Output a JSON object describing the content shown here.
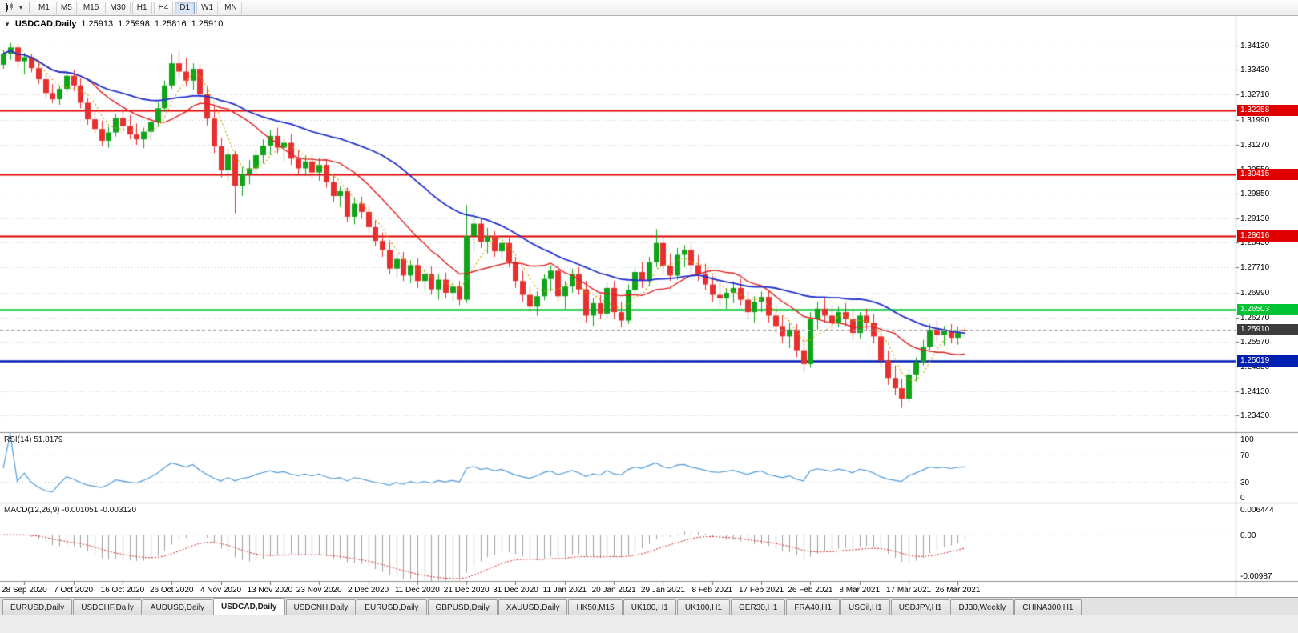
{
  "toolbar": {
    "timeframes": [
      "M1",
      "M5",
      "M15",
      "M30",
      "H1",
      "H4",
      "D1",
      "W1",
      "MN"
    ],
    "active_timeframe": "D1"
  },
  "icons": {
    "title_caret": "▼",
    "dropdown_caret": "▾"
  },
  "chart": {
    "title": {
      "symbol_period": "USDCAD,Daily",
      "open": "1.25913",
      "high": "1.25998",
      "low": "1.25816",
      "close": "1.25910"
    },
    "price_axis_labels": [
      "1.34130",
      "1.33430",
      "1.32710",
      "1.31990",
      "1.31270",
      "1.30550",
      "1.29850",
      "1.29130",
      "1.28430",
      "1.27710",
      "1.26990",
      "1.26270",
      "1.25570",
      "1.24850",
      "1.24130",
      "1.23430"
    ],
    "levels": [
      {
        "value": 1.32258,
        "label": "1.32258",
        "color": "#e00000",
        "width": 1.8
      },
      {
        "value": 1.30415,
        "label": "1.30415",
        "color": "#e00000",
        "width": 1.8
      },
      {
        "value": 1.28616,
        "label": "1.28616",
        "color": "#e00000",
        "width": 1.8
      },
      {
        "value": 1.26503,
        "label": "1.26503",
        "color": "#00c432",
        "width": 2.6
      },
      {
        "value": 1.25019,
        "label": "1.25019",
        "color": "#0020b2",
        "width": 2.4
      }
    ],
    "current_price": {
      "value": 1.2591,
      "label": "1.25910",
      "tag_color": "#3c3c3c",
      "line_color": "#9a9a9a"
    }
  },
  "rsi": {
    "label": "RSI(14)",
    "value": "51.8179",
    "axis_labels": [
      {
        "v": 100,
        "t": "100"
      },
      {
        "v": 70,
        "t": "70"
      },
      {
        "v": 30,
        "t": "30"
      },
      {
        "v": 0,
        "t": "0"
      }
    ],
    "levels": [
      70,
      30
    ],
    "line_color": "#4f9ada"
  },
  "macd": {
    "label": "MACD(12,26,9)",
    "values_text": "-0.001051 -0.003120",
    "axis_labels": [
      {
        "v": 0.006444,
        "t": "0.006444"
      },
      {
        "v": 0,
        "t": "0.00"
      },
      {
        "v": -0.00987,
        "t": "-0.00987"
      }
    ],
    "histogram_color": "#a0a0a0",
    "signal_color": "#d42020"
  },
  "date_axis": {
    "labels": [
      "28 Sep 2020",
      "7 Oct 2020",
      "16 Oct 2020",
      "26 Oct 2020",
      "4 Nov 2020",
      "13 Nov 2020",
      "23 Nov 2020",
      "2 Dec 2020",
      "11 Dec 2020",
      "21 Dec 2020",
      "31 Dec 2020",
      "11 Jan 2021",
      "20 Jan 2021",
      "29 Jan 2021",
      "8 Feb 2021",
      "17 Feb 2021",
      "26 Feb 2021",
      "8 Mar 2021",
      "17 Mar 2021",
      "26 Mar 2021"
    ],
    "first_label_index": 3,
    "label_step": 7
  },
  "tabs": {
    "items": [
      "EURUSD,Daily",
      "USDCHF,Daily",
      "AUDUSD,Daily",
      "USDCAD,Daily",
      "USDCNH,Daily",
      "EURUSD,Daily",
      "GBPUSD,Daily",
      "XAUUSD,Daily",
      "HK50,M15",
      "UK100,H1",
      "UK100,H1",
      "GER30,H1",
      "FRA40,H1",
      "USOil,H1",
      "USDJPY,H1",
      "DJ30,Weekly",
      "CHINA300,H1"
    ],
    "active_index": 3
  },
  "chart_data": {
    "type": "candlestick+indicators",
    "symbol": "USDCAD",
    "timeframe": "Daily",
    "y_range": {
      "top": 1.3499,
      "bottom": 1.2295
    },
    "up_color": "#10a41a",
    "down_color": "#e82f2f",
    "ma": [
      {
        "period": 5,
        "color": "#c9a800",
        "style": "dot",
        "width": 1.2
      },
      {
        "period": 13,
        "color": "#e02020",
        "style": "solid",
        "width": 1.4
      },
      {
        "period": 34,
        "color": "#2030cc",
        "style": "solid",
        "width": 1.8
      }
    ],
    "rsi_period": 14,
    "macd_params": {
      "fast": 12,
      "slow": 26,
      "signal": 9
    },
    "candles": [
      [
        1.3358,
        1.3402,
        1.3346,
        1.339
      ],
      [
        1.339,
        1.3421,
        1.3372,
        1.3408
      ],
      [
        1.3408,
        1.3418,
        1.335,
        1.3368
      ],
      [
        1.3368,
        1.3392,
        1.333,
        1.338
      ],
      [
        1.338,
        1.339,
        1.3336,
        1.3348
      ],
      [
        1.3348,
        1.337,
        1.3302,
        1.3316
      ],
      [
        1.3316,
        1.3332,
        1.3262,
        1.3276
      ],
      [
        1.3276,
        1.3302,
        1.3247,
        1.3258
      ],
      [
        1.3258,
        1.3296,
        1.3242,
        1.3288
      ],
      [
        1.3288,
        1.334,
        1.3276,
        1.3326
      ],
      [
        1.3326,
        1.3342,
        1.3282,
        1.3298
      ],
      [
        1.3298,
        1.332,
        1.3232,
        1.3248
      ],
      [
        1.3248,
        1.3262,
        1.3184,
        1.32
      ],
      [
        1.32,
        1.3224,
        1.3158,
        1.3172
      ],
      [
        1.3172,
        1.3196,
        1.3122,
        1.3138
      ],
      [
        1.3138,
        1.3178,
        1.3118,
        1.3162
      ],
      [
        1.3162,
        1.3216,
        1.315,
        1.3204
      ],
      [
        1.3204,
        1.3228,
        1.3162,
        1.318
      ],
      [
        1.318,
        1.3212,
        1.3142,
        1.3156
      ],
      [
        1.3156,
        1.3188,
        1.3126,
        1.3142
      ],
      [
        1.3142,
        1.3176,
        1.3116,
        1.3164
      ],
      [
        1.3164,
        1.3208,
        1.314,
        1.3192
      ],
      [
        1.3192,
        1.3248,
        1.3178,
        1.3232
      ],
      [
        1.3232,
        1.3312,
        1.3222,
        1.3298
      ],
      [
        1.3298,
        1.339,
        1.3288,
        1.3362
      ],
      [
        1.3362,
        1.3398,
        1.3318,
        1.3338
      ],
      [
        1.3338,
        1.3378,
        1.3296,
        1.3312
      ],
      [
        1.3312,
        1.3362,
        1.3286,
        1.3346
      ],
      [
        1.3346,
        1.336,
        1.3252,
        1.3272
      ],
      [
        1.3272,
        1.3298,
        1.3182,
        1.3202
      ],
      [
        1.3202,
        1.3238,
        1.3102,
        1.3122
      ],
      [
        1.3122,
        1.3146,
        1.3032,
        1.3052
      ],
      [
        1.3052,
        1.3118,
        1.3022,
        1.3098
      ],
      [
        1.3098,
        1.3108,
        1.2928,
        1.3008
      ],
      [
        1.3008,
        1.3062,
        1.2978,
        1.3042
      ],
      [
        1.3042,
        1.3082,
        1.3012,
        1.3058
      ],
      [
        1.3058,
        1.3112,
        1.3036,
        1.3096
      ],
      [
        1.3096,
        1.3142,
        1.3072,
        1.3124
      ],
      [
        1.3124,
        1.3168,
        1.3096,
        1.3152
      ],
      [
        1.3152,
        1.3176,
        1.3102,
        1.3118
      ],
      [
        1.3118,
        1.3146,
        1.308,
        1.3132
      ],
      [
        1.3132,
        1.3158,
        1.3068,
        1.3086
      ],
      [
        1.3086,
        1.3112,
        1.3042,
        1.3058
      ],
      [
        1.3058,
        1.3096,
        1.3036,
        1.3078
      ],
      [
        1.3078,
        1.3098,
        1.3028,
        1.3046
      ],
      [
        1.3046,
        1.3088,
        1.3022,
        1.3068
      ],
      [
        1.3068,
        1.3082,
        1.3002,
        1.3018
      ],
      [
        1.3018,
        1.3042,
        1.2962,
        1.2978
      ],
      [
        1.2978,
        1.3006,
        1.2946,
        1.2992
      ],
      [
        1.2992,
        1.3002,
        1.2902,
        1.2918
      ],
      [
        1.2918,
        1.2972,
        1.2896,
        1.2956
      ],
      [
        1.2956,
        1.2976,
        1.2912,
        1.2932
      ],
      [
        1.2932,
        1.2948,
        1.2872,
        1.2888
      ],
      [
        1.2888,
        1.2908,
        1.2832,
        1.2848
      ],
      [
        1.2848,
        1.2872,
        1.2802,
        1.2822
      ],
      [
        1.2822,
        1.2846,
        1.2752,
        1.2768
      ],
      [
        1.2768,
        1.2812,
        1.2742,
        1.2796
      ],
      [
        1.2796,
        1.2816,
        1.2732,
        1.2748
      ],
      [
        1.2748,
        1.2792,
        1.2726,
        1.2778
      ],
      [
        1.2778,
        1.2798,
        1.2712,
        1.2732
      ],
      [
        1.2732,
        1.2768,
        1.2702,
        1.2752
      ],
      [
        1.2752,
        1.2774,
        1.2692,
        1.2708
      ],
      [
        1.2708,
        1.2752,
        1.2678,
        1.2736
      ],
      [
        1.2736,
        1.2756,
        1.2682,
        1.2698
      ],
      [
        1.2698,
        1.2732,
        1.2672,
        1.2716
      ],
      [
        1.2716,
        1.2732,
        1.2662,
        1.2678
      ],
      [
        1.2678,
        1.2952,
        1.2668,
        1.2862
      ],
      [
        1.2862,
        1.2932,
        1.2818,
        1.2898
      ],
      [
        1.2898,
        1.2916,
        1.2828,
        1.2846
      ],
      [
        1.2846,
        1.2886,
        1.2812,
        1.2862
      ],
      [
        1.2862,
        1.2876,
        1.2802,
        1.2818
      ],
      [
        1.2818,
        1.2862,
        1.2796,
        1.2842
      ],
      [
        1.2842,
        1.2858,
        1.2772,
        1.2788
      ],
      [
        1.2788,
        1.2802,
        1.2712,
        1.2732
      ],
      [
        1.2732,
        1.2762,
        1.2672,
        1.2692
      ],
      [
        1.2692,
        1.2716,
        1.2642,
        1.2658
      ],
      [
        1.2658,
        1.2702,
        1.2632,
        1.2688
      ],
      [
        1.2688,
        1.2752,
        1.2676,
        1.2738
      ],
      [
        1.2738,
        1.2778,
        1.2702,
        1.2762
      ],
      [
        1.2762,
        1.2782,
        1.2672,
        1.2688
      ],
      [
        1.2688,
        1.2732,
        1.2652,
        1.2716
      ],
      [
        1.2716,
        1.2768,
        1.2698,
        1.2752
      ],
      [
        1.2752,
        1.2772,
        1.2692,
        1.2708
      ],
      [
        1.2708,
        1.2732,
        1.2612,
        1.2632
      ],
      [
        1.2632,
        1.2682,
        1.2602,
        1.2668
      ],
      [
        1.2668,
        1.2692,
        1.2622,
        1.2638
      ],
      [
        1.2638,
        1.2728,
        1.2626,
        1.2712
      ],
      [
        1.2712,
        1.2732,
        1.2622,
        1.2642
      ],
      [
        1.2642,
        1.2672,
        1.2598,
        1.2618
      ],
      [
        1.2618,
        1.2722,
        1.2608,
        1.2706
      ],
      [
        1.2706,
        1.2772,
        1.2692,
        1.2758
      ],
      [
        1.2758,
        1.2788,
        1.2712,
        1.2732
      ],
      [
        1.2732,
        1.2802,
        1.2718,
        1.2786
      ],
      [
        1.2786,
        1.2882,
        1.2772,
        1.2842
      ],
      [
        1.2842,
        1.2862,
        1.2752,
        1.2776
      ],
      [
        1.2776,
        1.2812,
        1.2732,
        1.2748
      ],
      [
        1.2748,
        1.2828,
        1.2736,
        1.2808
      ],
      [
        1.2808,
        1.2836,
        1.2772,
        1.2822
      ],
      [
        1.2822,
        1.2842,
        1.2756,
        1.2778
      ],
      [
        1.2778,
        1.2808,
        1.2732,
        1.2752
      ],
      [
        1.2752,
        1.2782,
        1.2706,
        1.2722
      ],
      [
        1.2722,
        1.2746,
        1.2672,
        1.2692
      ],
      [
        1.2692,
        1.2722,
        1.2658,
        1.2682
      ],
      [
        1.2682,
        1.2712,
        1.2652,
        1.2698
      ],
      [
        1.2698,
        1.2732,
        1.2668,
        1.2712
      ],
      [
        1.2712,
        1.2738,
        1.2662,
        1.2678
      ],
      [
        1.2678,
        1.2702,
        1.2622,
        1.2642
      ],
      [
        1.2642,
        1.2688,
        1.2612,
        1.2672
      ],
      [
        1.2672,
        1.2702,
        1.2642,
        1.2686
      ],
      [
        1.2686,
        1.2706,
        1.2612,
        1.2632
      ],
      [
        1.2632,
        1.2662,
        1.2582,
        1.2602
      ],
      [
        1.2602,
        1.2632,
        1.2552,
        1.2572
      ],
      [
        1.2572,
        1.2612,
        1.2538,
        1.2592
      ],
      [
        1.2592,
        1.2608,
        1.2512,
        1.2532
      ],
      [
        1.2532,
        1.2572,
        1.2468,
        1.2492
      ],
      [
        1.2492,
        1.2642,
        1.2482,
        1.2622
      ],
      [
        1.2622,
        1.2672,
        1.2592,
        1.2652
      ],
      [
        1.2652,
        1.2682,
        1.2612,
        1.2632
      ],
      [
        1.2632,
        1.2662,
        1.2592,
        1.2612
      ],
      [
        1.2612,
        1.2658,
        1.2598,
        1.2642
      ],
      [
        1.2642,
        1.2668,
        1.2602,
        1.2622
      ],
      [
        1.2622,
        1.2652,
        1.2562,
        1.2582
      ],
      [
        1.2582,
        1.2642,
        1.2566,
        1.2632
      ],
      [
        1.2632,
        1.2652,
        1.2592,
        1.2612
      ],
      [
        1.2612,
        1.2638,
        1.2552,
        1.2572
      ],
      [
        1.2572,
        1.2598,
        1.2482,
        1.2502
      ],
      [
        1.2502,
        1.2532,
        1.2432,
        1.2452
      ],
      [
        1.2452,
        1.2488,
        1.2402,
        1.2422
      ],
      [
        1.2422,
        1.2448,
        1.2365,
        1.2392
      ],
      [
        1.2392,
        1.2478,
        1.2382,
        1.2462
      ],
      [
        1.2462,
        1.2512,
        1.2442,
        1.2498
      ],
      [
        1.2498,
        1.2562,
        1.2488,
        1.2542
      ],
      [
        1.2542,
        1.2608,
        1.2532,
        1.2592
      ],
      [
        1.2592,
        1.2618,
        1.2558,
        1.2576
      ],
      [
        1.2576,
        1.2602,
        1.2546,
        1.2588
      ],
      [
        1.2588,
        1.2608,
        1.2552,
        1.2568
      ],
      [
        1.2568,
        1.2601,
        1.2548,
        1.2585
      ],
      [
        1.25913,
        1.25998,
        1.25816,
        1.2591
      ]
    ]
  }
}
